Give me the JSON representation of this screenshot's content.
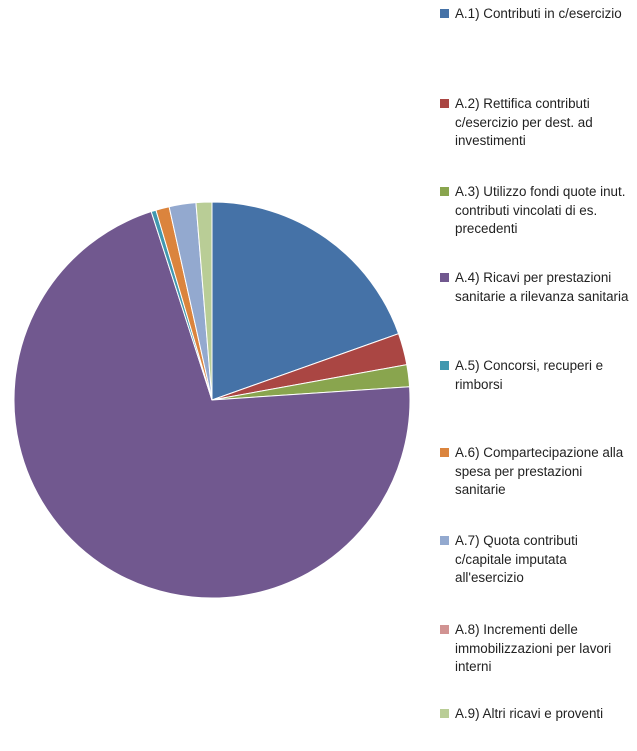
{
  "chart_data": {
    "type": "pie",
    "title": "",
    "legend_position": "right",
    "start_angle_deg": 0,
    "direction": "clockwise",
    "categories": [
      "A.1)  Contributi in c/esercizio",
      "A.2)  Rettifica contributi c/esercizio per dest. ad investimenti",
      "A.3) Utilizzo fondi quote inut. contributi vincolati di es. precedenti",
      "A.4)  Ricavi per prestazioni sanitarie a rilevanza sanitaria",
      "A.5) Concorsi, recuperi e rimborsi",
      "A.6) Compartecipazione alla spesa per prestazioni sanitarie",
      "A.7)  Quota contributi c/capitale imputata all'esercizio",
      "A.8)  Incrementi delle immobilizzazioni per lavori interni",
      "A.9) Altri ricavi e proventi"
    ],
    "values": [
      19.7,
      2.6,
      1.8,
      71.6,
      0.4,
      1.1,
      2.2,
      0.0,
      1.3
    ],
    "colors": [
      "#4572A7",
      "#AA4643",
      "#89A54E",
      "#71588F",
      "#4198AF",
      "#DB843D",
      "#93A9CF",
      "#D19392",
      "#B9CD96"
    ]
  }
}
